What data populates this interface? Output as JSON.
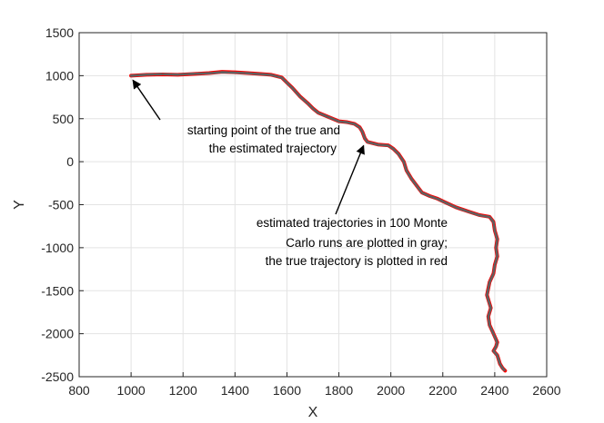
{
  "chart_data": {
    "type": "line",
    "title": "",
    "xlabel": "X",
    "ylabel": "Y",
    "xlim": [
      800,
      2600
    ],
    "ylim": [
      -2500,
      1500
    ],
    "xticks": [
      "800",
      "1000",
      "1200",
      "1400",
      "1600",
      "1800",
      "2000",
      "2200",
      "2400",
      "2600"
    ],
    "yticks": [
      "-2500",
      "-2000",
      "-1500",
      "-1000",
      "-500",
      "0",
      "500",
      "1000",
      "1500"
    ],
    "grid": true,
    "colors": {
      "true": "#ff0000",
      "estimated": "#606060"
    },
    "series": [
      {
        "role": "true",
        "x": [
          1000,
          1060,
          1120,
          1180,
          1240,
          1300,
          1350,
          1400,
          1450,
          1500,
          1540,
          1580,
          1600,
          1620,
          1650,
          1680,
          1700,
          1720,
          1760,
          1800,
          1830,
          1860,
          1880,
          1890,
          1900,
          1910,
          1950,
          1990,
          2010,
          2030,
          2050,
          2060,
          2080,
          2100,
          2120,
          2150,
          2180,
          2200,
          2250,
          2300,
          2340,
          2380,
          2395,
          2400,
          2410,
          2405,
          2410,
          2400,
          2395,
          2380,
          2370,
          2385,
          2375,
          2380,
          2395,
          2410,
          2405,
          2395,
          2410,
          2415,
          2420,
          2430,
          2440
        ],
        "y": [
          1000,
          1010,
          1015,
          1010,
          1020,
          1030,
          1045,
          1040,
          1030,
          1020,
          1010,
          980,
          920,
          860,
          760,
          680,
          620,
          570,
          520,
          470,
          460,
          440,
          400,
          350,
          270,
          230,
          200,
          190,
          150,
          90,
          0,
          -100,
          -200,
          -280,
          -360,
          -400,
          -430,
          -460,
          -530,
          -580,
          -620,
          -640,
          -700,
          -800,
          -900,
          -1000,
          -1100,
          -1200,
          -1300,
          -1400,
          -1550,
          -1700,
          -1800,
          -1900,
          -2000,
          -2100,
          -2150,
          -2200,
          -2250,
          -2300,
          -2350,
          -2400,
          -2430
        ]
      },
      {
        "role": "estimated",
        "x": [
          1000,
          1060,
          1120,
          1180,
          1240,
          1300,
          1350,
          1400,
          1450,
          1500,
          1540,
          1580,
          1600,
          1620,
          1650,
          1680,
          1700,
          1720,
          1760,
          1800,
          1830,
          1860,
          1880,
          1890,
          1900,
          1910,
          1950,
          1990,
          2010,
          2030,
          2050,
          2060,
          2080,
          2100,
          2120,
          2150,
          2180,
          2200,
          2250,
          2300,
          2340,
          2380,
          2395,
          2400,
          2410,
          2405,
          2410,
          2400,
          2395,
          2380,
          2370,
          2385,
          2375,
          2380,
          2395,
          2410,
          2405,
          2395,
          2410,
          2415,
          2420,
          2430,
          2440
        ],
        "y": [
          1000,
          1012,
          1018,
          1012,
          1022,
          1028,
          1040,
          1035,
          1028,
          1018,
          1008,
          978,
          918,
          858,
          758,
          678,
          618,
          568,
          518,
          468,
          458,
          438,
          398,
          348,
          268,
          228,
          198,
          188,
          148,
          88,
          -2,
          -102,
          -202,
          -282,
          -362,
          -402,
          -432,
          -462,
          -532,
          -582,
          -622,
          -642,
          -702,
          -802,
          -902,
          -1002,
          -1102,
          -1202,
          -1302,
          -1402,
          -1552,
          -1702,
          -1802,
          -1902,
          -2002,
          -2102,
          -2152,
          -2202,
          -2252,
          -2302,
          -2352,
          -2402,
          -2432
        ]
      }
    ],
    "annotations": [
      {
        "lines": [
          "starting point of the true and",
          "the estimated trajectory"
        ],
        "point": [
          1000,
          990
        ]
      },
      {
        "lines": [
          "estimated trajectories in 100 Monte",
          "Carlo runs are plotted in gray;",
          "the true trajectory is plotted in red"
        ],
        "point": [
          1895,
          250
        ]
      }
    ]
  }
}
